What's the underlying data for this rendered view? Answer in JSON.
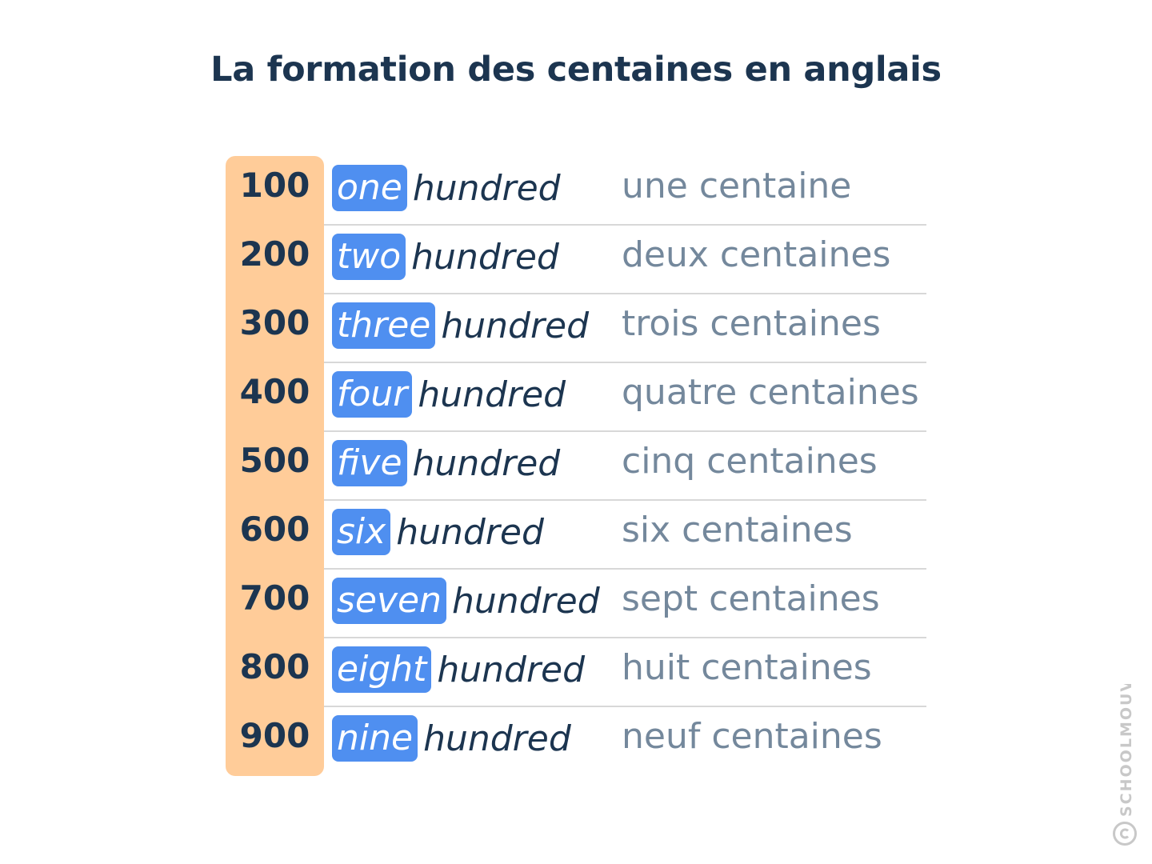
{
  "title": "La formation des centaines en anglais",
  "rows": [
    {
      "number": "100",
      "digit_word": "one",
      "hundred": "hundred",
      "french": "une centaine"
    },
    {
      "number": "200",
      "digit_word": "two",
      "hundred": "hundred",
      "french": "deux centaines"
    },
    {
      "number": "300",
      "digit_word": "three",
      "hundred": "hundred",
      "french": "trois centaines"
    },
    {
      "number": "400",
      "digit_word": "four",
      "hundred": "hundred",
      "french": "quatre centaines"
    },
    {
      "number": "500",
      "digit_word": "five",
      "hundred": "hundred",
      "french": "cinq centaines"
    },
    {
      "number": "600",
      "digit_word": "six",
      "hundred": "hundred",
      "french": "six centaines"
    },
    {
      "number": "700",
      "digit_word": "seven",
      "hundred": "hundred",
      "french": "sept centaines"
    },
    {
      "number": "800",
      "digit_word": "eight",
      "hundred": "hundred",
      "french": "huit centaines"
    },
    {
      "number": "900",
      "digit_word": "nine",
      "hundred": "hundred",
      "french": "neuf centaines"
    }
  ],
  "watermark": "SCHOOLMOUV",
  "colors": {
    "title": "#1c3550",
    "number_column_bg": "#ffcc99",
    "highlight_bg": "#4f8ff0",
    "french_text": "#74889c",
    "divider": "#d8d8d8"
  }
}
